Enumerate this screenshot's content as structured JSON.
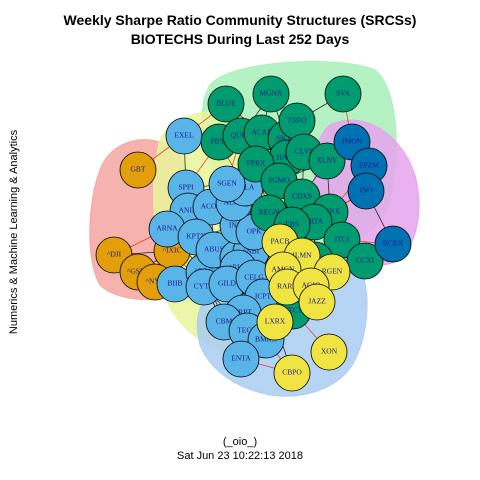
{
  "title": {
    "line1": "Weekly Sharpe Ratio Community Structures (SRCSs)",
    "line2": "BIOTECHS During Last 252 Days"
  },
  "ylabel": "Numerics & Machine Learning & Analytics",
  "caption": {
    "author": "(_oio_)",
    "timestamp": "Sat Jun 23 10:22:13 2018"
  },
  "colors": {
    "node_orange": "#e39f0a",
    "node_blue": "#59b4e8",
    "node_green": "#009b6e",
    "node_yellow": "#f0e442",
    "node_navy": "#0072b2",
    "hull_red": "#f4a6a0",
    "hull_green": "#a8f0b8",
    "hull_yellow": "#e8f59a",
    "hull_blue": "#a9cdf2",
    "hull_purple": "#e6a3ef",
    "edge_black": "#000000",
    "edge_red": "#d62718"
  },
  "nodes": [
    {
      "label": "GBT",
      "group": "orange"
    },
    {
      "label": "^DJI",
      "group": "orange"
    },
    {
      "label": "^GSPC",
      "group": "orange"
    },
    {
      "label": "^IXIC",
      "group": "orange"
    },
    {
      "label": "^NYA",
      "group": "orange"
    },
    {
      "label": "EXEL",
      "group": "blue"
    },
    {
      "label": "SPPI",
      "group": "blue"
    },
    {
      "label": "ANIK",
      "group": "blue"
    },
    {
      "label": "ACOR",
      "group": "blue"
    },
    {
      "label": "ARNA",
      "group": "blue"
    },
    {
      "label": "KPTX",
      "group": "blue"
    },
    {
      "label": "BIIB",
      "group": "blue"
    },
    {
      "label": "^DRG",
      "group": "blue"
    },
    {
      "label": "CYTK",
      "group": "blue"
    },
    {
      "label": "ABUS",
      "group": "blue"
    },
    {
      "label": "^BTK",
      "group": "blue"
    },
    {
      "label": "^NBI",
      "group": "blue"
    },
    {
      "label": "^RUT",
      "group": "blue"
    },
    {
      "label": "GILD",
      "group": "blue"
    },
    {
      "label": "CELG",
      "group": "blue"
    },
    {
      "label": "INCY",
      "group": "blue"
    },
    {
      "label": "OPK",
      "group": "blue"
    },
    {
      "label": "ALXN",
      "group": "blue"
    },
    {
      "label": "PTLA",
      "group": "blue"
    },
    {
      "label": "SGEN",
      "group": "blue"
    },
    {
      "label": "ICPT",
      "group": "blue"
    },
    {
      "label": "SRPT",
      "group": "blue"
    },
    {
      "label": "CBM",
      "group": "blue"
    },
    {
      "label": "TECH",
      "group": "blue"
    },
    {
      "label": "BMRN",
      "group": "blue"
    },
    {
      "label": "ENTA",
      "group": "blue"
    },
    {
      "label": "BLUE",
      "group": "green"
    },
    {
      "label": "MGNX",
      "group": "green"
    },
    {
      "label": "SVA",
      "group": "green"
    },
    {
      "label": "PBYI",
      "group": "green"
    },
    {
      "label": "QURE",
      "group": "green"
    },
    {
      "label": "ACAD",
      "group": "green"
    },
    {
      "label": "NKTR",
      "group": "green"
    },
    {
      "label": "TSRO",
      "group": "green"
    },
    {
      "label": "HALO",
      "group": "green"
    },
    {
      "label": "CLVS",
      "group": "green"
    },
    {
      "label": "XLNY",
      "group": "green"
    },
    {
      "label": "FPRX",
      "group": "green"
    },
    {
      "label": "SGMO",
      "group": "green"
    },
    {
      "label": "REGN",
      "group": "green"
    },
    {
      "label": "CDXS",
      "group": "green"
    },
    {
      "label": "PGNX",
      "group": "green"
    },
    {
      "label": "PRTA",
      "group": "green"
    },
    {
      "label": "EBS",
      "group": "green"
    },
    {
      "label": "ITCI",
      "group": "green"
    },
    {
      "label": "CCXI",
      "group": "green"
    },
    {
      "label": "INSM",
      "group": "green"
    },
    {
      "label": "PTCT",
      "group": "green"
    },
    {
      "label": "JMON",
      "group": "navy"
    },
    {
      "label": "EPZM",
      "group": "navy"
    },
    {
      "label": "INO",
      "group": "navy"
    },
    {
      "label": "BCRX",
      "group": "navy"
    },
    {
      "label": "PACB",
      "group": "yellow"
    },
    {
      "label": "ILMN",
      "group": "yellow"
    },
    {
      "label": "AMGN",
      "group": "yellow"
    },
    {
      "label": "RGEN",
      "group": "yellow"
    },
    {
      "label": "RARE",
      "group": "yellow"
    },
    {
      "label": "AGIO",
      "group": "yellow"
    },
    {
      "label": "JAZZ",
      "group": "yellow"
    },
    {
      "label": "LXRX",
      "group": "yellow"
    },
    {
      "label": "XON",
      "group": "yellow"
    },
    {
      "label": "CBPO",
      "group": "yellow"
    }
  ]
}
